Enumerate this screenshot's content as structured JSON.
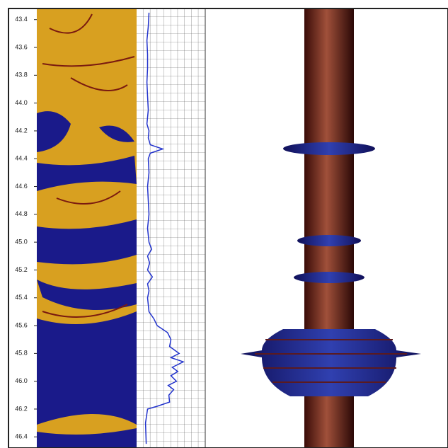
{
  "chart_data": {
    "type": "line",
    "ylim": [
      43.32,
      46.48
    ],
    "yticks": [
      43.4,
      43.6,
      43.8,
      {
        "value": 44,
        "label": "44.0"
      },
      44.2,
      44.4,
      44.6,
      44.8,
      {
        "value": 45,
        "label": "45.0"
      },
      45.2,
      45.4,
      45.6,
      45.8,
      {
        "value": 46,
        "label": "46.0"
      },
      46.2,
      46.4
    ],
    "xlim": [
      0,
      10
    ],
    "depth": [
      43.35,
      43.45,
      43.55,
      43.65,
      43.75,
      43.85,
      43.95,
      44.05,
      44.15,
      44.2,
      44.25,
      44.3,
      44.33,
      44.36,
      44.4,
      44.5,
      44.6,
      44.7,
      44.8,
      44.9,
      45.0,
      45.05,
      45.1,
      45.15,
      45.2,
      45.25,
      45.3,
      45.35,
      45.4,
      45.5,
      45.55,
      45.6,
      45.65,
      45.7,
      45.75,
      45.8,
      45.83,
      45.86,
      45.9,
      45.93,
      45.96,
      46.0,
      46.03,
      46.06,
      46.1,
      46.15,
      46.18,
      46.2,
      46.3,
      46.45
    ],
    "series": [
      {
        "color": "#2233cc",
        "values": [
          1.8,
          1.7,
          1.5,
          1.6,
          1.6,
          1.5,
          1.6,
          1.7,
          1.5,
          1.8,
          1.7,
          2.0,
          3.8,
          2.0,
          1.7,
          1.8,
          1.6,
          1.7,
          1.8,
          1.6,
          1.8,
          2.2,
          1.6,
          1.9,
          1.6,
          2.3,
          1.6,
          1.8,
          1.6,
          1.8,
          2.5,
          3.0,
          4.5,
          5.0,
          4.8,
          6.2,
          5.0,
          6.8,
          5.2,
          6.0,
          5.0,
          5.8,
          4.6,
          5.4,
          4.7,
          4.8,
          3.0,
          1.6,
          1.3,
          1.4
        ]
      }
    ]
  }
}
